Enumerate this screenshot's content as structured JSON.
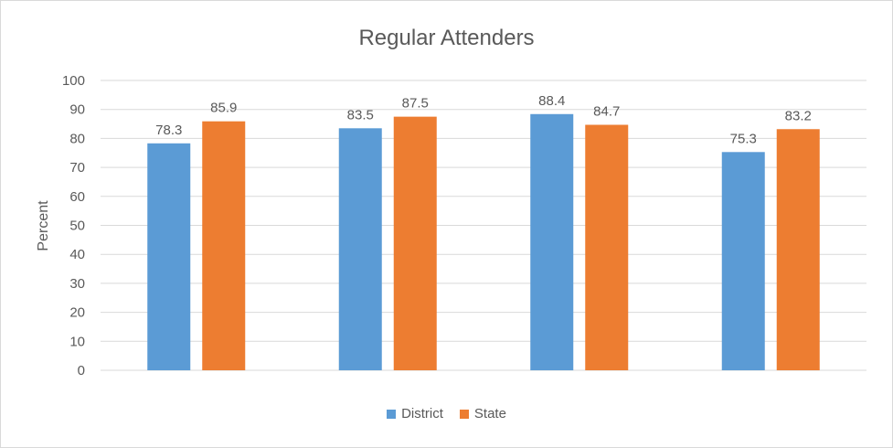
{
  "chart_data": {
    "type": "bar",
    "title": "Regular Attenders",
    "xlabel": "",
    "ylabel": "Percent",
    "ylim": [
      0,
      100
    ],
    "yticks": [
      0,
      10,
      20,
      30,
      40,
      50,
      60,
      70,
      80,
      90,
      100
    ],
    "categories": [
      "",
      "",
      "",
      ""
    ],
    "grid": true,
    "legend_position": "bottom",
    "series": [
      {
        "name": "District",
        "color": "#5b9bd5",
        "values": [
          78.3,
          83.5,
          88.4,
          75.3
        ]
      },
      {
        "name": "State",
        "color": "#ed7d31",
        "values": [
          85.9,
          87.5,
          84.7,
          83.2
        ]
      }
    ]
  }
}
